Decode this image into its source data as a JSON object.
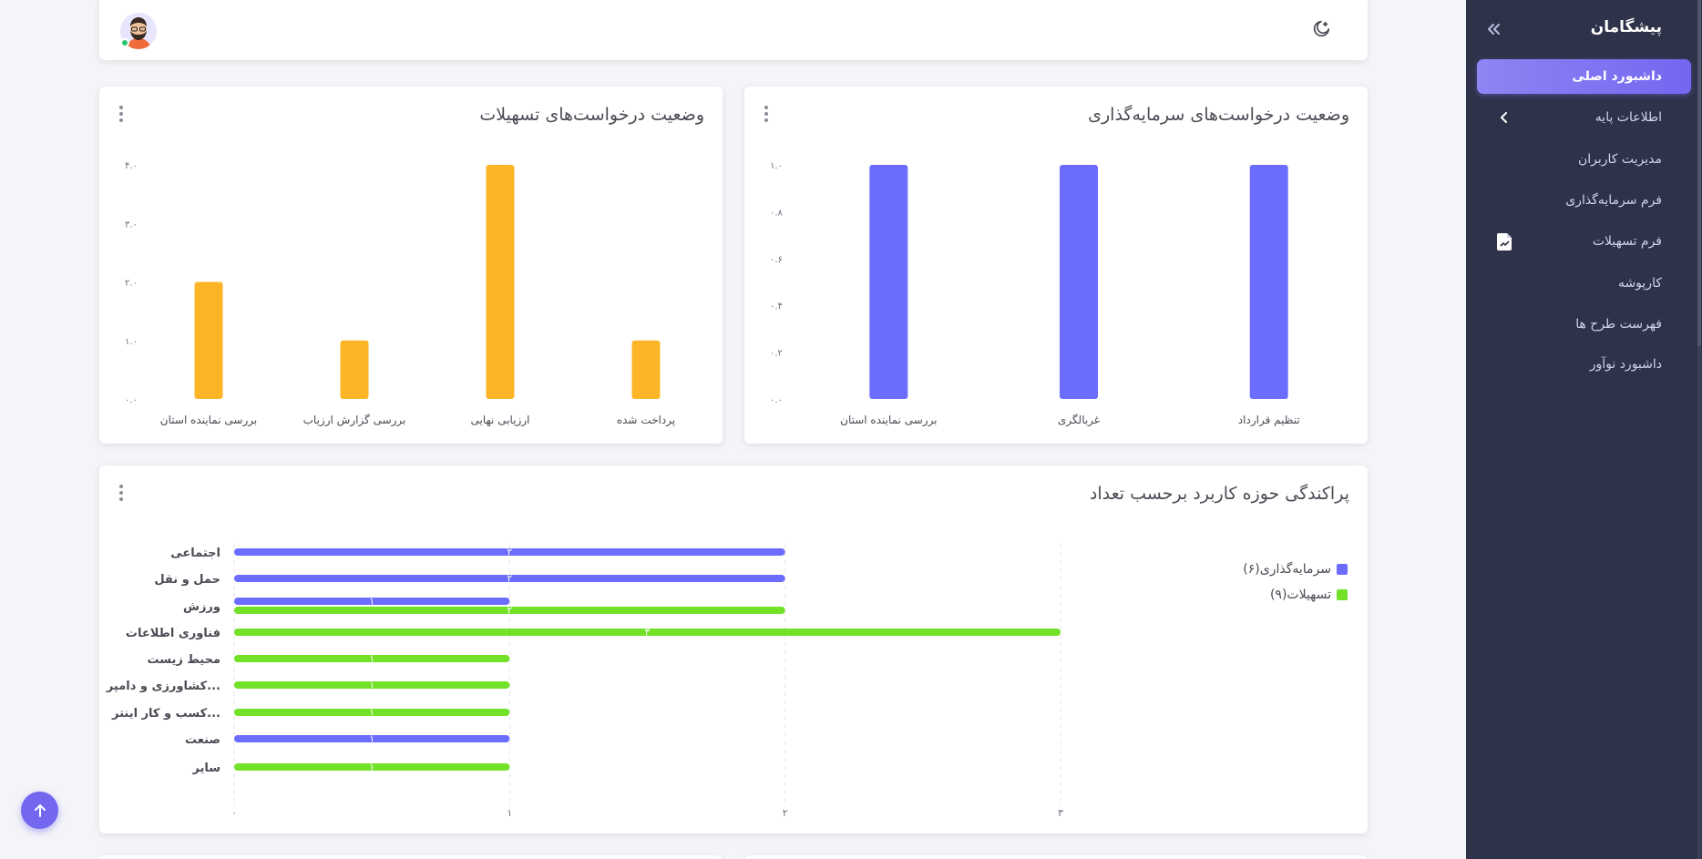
{
  "sidebar": {
    "brand": "پیشگامان",
    "items": [
      {
        "label": "داشبورد اصلی",
        "active": true
      },
      {
        "label": "اطلاعات پایه",
        "has_chevron": true
      },
      {
        "label": "مدیریت کاربران"
      },
      {
        "label": "فرم سرمایه‌گذاری"
      },
      {
        "label": "فرم تسهیلات",
        "icon": "document-icon"
      },
      {
        "label": "کارپوشه"
      },
      {
        "label": "فهرست طرح ها"
      },
      {
        "label": "داشبورد نوآور"
      }
    ]
  },
  "topbar": {
    "theme_icon": "moon-icon",
    "avatar_icon": "avatar"
  },
  "colors": {
    "primary": "#7367f0",
    "bar_blue": "#6c6cff",
    "bar_orange": "#fdb528",
    "bar_green": "#72e128",
    "sidebar_bg": "#2f3349"
  },
  "investment_card": {
    "title": "وضعیت درخواست‌های سرمایه‌گذاری",
    "chart_data": {
      "type": "bar",
      "categories": [
        "تنظیم قرارداد",
        "غربالگری",
        "بررسی نماینده استان"
      ],
      "values": [
        1,
        1,
        1
      ],
      "ylim": [
        0,
        1
      ],
      "yticks": [
        "۰.۰",
        "۰.۲",
        "۰.۴",
        "۰.۶",
        "۰.۸",
        "۱.۰"
      ],
      "color": "#6c6cff"
    }
  },
  "facilities_card": {
    "title": "وضعیت درخواست‌های تسهیلات",
    "chart_data": {
      "type": "bar",
      "categories": [
        "پرداخت شده",
        "ارزیابی نهایی",
        "بررسی گزارش ارزیاب",
        "بررسی نماینده استان"
      ],
      "values": [
        1,
        4,
        1,
        2
      ],
      "ylim": [
        0,
        4
      ],
      "yticks": [
        "۰.۰",
        "۱.۰",
        "۲.۰",
        "۳.۰",
        "۴.۰"
      ],
      "color": "#fdb528"
    }
  },
  "distribution_card": {
    "title": "پراکندگی حوزه کاربرد برحسب تعداد",
    "legend": [
      {
        "label": "سرمایه‌گذاری(۶)",
        "color": "#6c6cff"
      },
      {
        "label": "تسهیلات(۹)",
        "color": "#72e128"
      }
    ],
    "chart_data": {
      "type": "bar",
      "orientation": "horizontal",
      "categories": [
        "اجتماعی",
        "حمل و نقل",
        "ورزش",
        "فناوری اطلاعات",
        "محیط زیست",
        "کشاورزی و دامپر...",
        "کسب و کار اینتر...",
        "صنعت",
        "سایر"
      ],
      "series": [
        {
          "name": "سرمایه‌گذاری(۶)",
          "color": "#6c6cff",
          "values": [
            2,
            2,
            1,
            0,
            0,
            0,
            0,
            1,
            0
          ]
        },
        {
          "name": "تسهیلات(۹)",
          "color": "#72e128",
          "values": [
            0,
            0,
            2,
            3,
            1,
            1,
            1,
            0,
            1
          ]
        }
      ],
      "xlim": [
        0,
        3
      ],
      "xticks": [
        "۰",
        "۱",
        "۲",
        "۳"
      ],
      "value_labels": [
        "۰",
        "۱",
        "۲",
        "۳"
      ]
    }
  }
}
